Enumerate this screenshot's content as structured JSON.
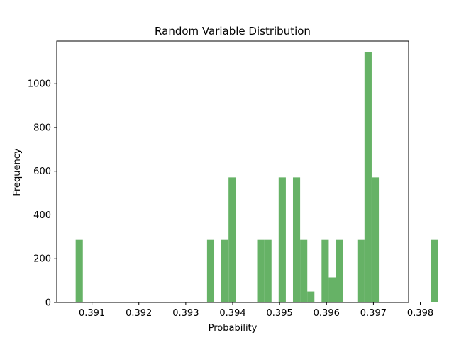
{
  "chart_data": {
    "type": "bar",
    "title": "Random Variable Distribution",
    "xlabel": "Probability",
    "ylabel": "Frequency",
    "xlim": [
      0.39025,
      0.39775
    ],
    "ylim": [
      0,
      1195
    ],
    "xticks": [
      0.391,
      0.392,
      0.393,
      0.394,
      0.395,
      0.396,
      0.397,
      0.398
    ],
    "xtick_labels": [
      "0.391",
      "0.392",
      "0.393",
      "0.394",
      "0.395",
      "0.396",
      "0.397",
      "0.398"
    ],
    "yticks": [
      0,
      200,
      400,
      600,
      800,
      1000
    ],
    "ytick_labels": [
      "0",
      "200",
      "400",
      "600",
      "800",
      "1000"
    ],
    "bin_width": 0.000153,
    "color": "#66b266",
    "bins": [
      {
        "x0": 0.390653,
        "value": 286
      },
      {
        "x0": 0.393454,
        "value": 286
      },
      {
        "x0": 0.393758,
        "value": 286
      },
      {
        "x0": 0.393912,
        "value": 572
      },
      {
        "x0": 0.394522,
        "value": 286
      },
      {
        "x0": 0.394675,
        "value": 286
      },
      {
        "x0": 0.39498,
        "value": 572
      },
      {
        "x0": 0.395285,
        "value": 572
      },
      {
        "x0": 0.395438,
        "value": 286
      },
      {
        "x0": 0.39559,
        "value": 50
      },
      {
        "x0": 0.395895,
        "value": 286
      },
      {
        "x0": 0.396048,
        "value": 115
      },
      {
        "x0": 0.3962,
        "value": 286
      },
      {
        "x0": 0.396658,
        "value": 286
      },
      {
        "x0": 0.39681,
        "value": 1144
      },
      {
        "x0": 0.396963,
        "value": 572
      },
      {
        "x0": 0.398232,
        "value": 286
      }
    ]
  }
}
